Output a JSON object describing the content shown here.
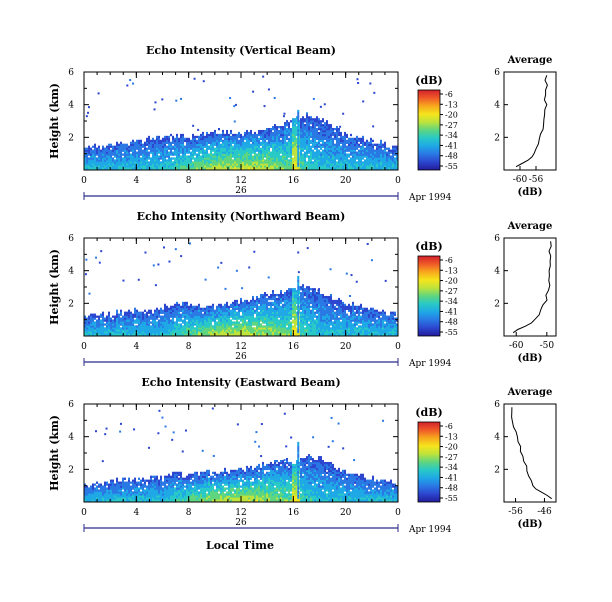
{
  "figure": {
    "xlabel": "Local Time",
    "date_label": "Apr 1994",
    "day_label": "26",
    "colorbar_unit": "(dB)",
    "colorbar_ticks": [
      "-6",
      "-13",
      "-20",
      "-27",
      "-34",
      "-41",
      "-48",
      "-55"
    ],
    "colorbar_colors": [
      "#d2202a",
      "#f05a28",
      "#f7a81e",
      "#f6e41c",
      "#bde33c",
      "#5fd57f",
      "#28c9c7",
      "#1fa8e6",
      "#2a78e4",
      "#2c46cf",
      "#241c9a"
    ],
    "time_ticks": [
      "0",
      "4",
      "8",
      "12",
      "16",
      "20",
      "0"
    ],
    "height_ticks": [
      "6",
      "4",
      "2"
    ],
    "height_label": "Height (km)",
    "avg_title": "Average",
    "avg_xlabel": "(dB)"
  },
  "chart_data": [
    {
      "type": "heatmap",
      "title": "Echo Intensity (Vertical Beam)",
      "xlabel": "Local Time",
      "ylabel": "Height (km)",
      "xlim": [
        0,
        24
      ],
      "ylim": [
        0,
        6
      ],
      "zlim": [
        -55,
        -6
      ],
      "top_km": [
        1.3,
        1.4,
        1.5,
        1.6,
        1.7,
        1.9,
        2.0,
        2.1,
        1.9,
        2.1,
        2.3,
        2.3,
        2.2,
        2.3,
        2.5,
        2.7,
        3.0,
        3.3,
        3.1,
        2.6,
        2.1,
        1.9,
        1.7,
        1.5,
        1.3
      ],
      "profile": {
        "heights_km": [
          0.2,
          0.4,
          0.6,
          0.8,
          1.0,
          1.3,
          1.6,
          1.9,
          2.2,
          2.5,
          2.8,
          3.1,
          3.4,
          3.7,
          4.0,
          4.3,
          4.6,
          4.9,
          5.2,
          5.5,
          5.8
        ],
        "db": [
          -61,
          -59.5,
          -58,
          -57,
          -56.5,
          -56,
          -55.4,
          -55.0,
          -54.7,
          -54.6,
          -54.3,
          -54.4,
          -54.0,
          -53.9,
          -53.6,
          -53.9,
          -53.4,
          -53.5,
          -53.2,
          -53.4,
          -53.1
        ],
        "xlim": [
          -64,
          -51
        ],
        "xticks": [
          "-56",
          "-60"
        ],
        "xtick_vals": [
          -56,
          -60
        ]
      }
    },
    {
      "type": "heatmap",
      "title": "Echo Intensity (Northward Beam)",
      "xlabel": "Local Time",
      "ylabel": "Height (km)",
      "xlim": [
        0,
        24
      ],
      "ylim": [
        0,
        6
      ],
      "zlim": [
        -55,
        -6
      ],
      "top_km": [
        1.1,
        1.2,
        1.3,
        1.4,
        1.5,
        1.6,
        1.7,
        2.0,
        1.9,
        1.7,
        1.8,
        2.0,
        2.1,
        2.3,
        2.5,
        2.6,
        2.8,
        3.1,
        2.7,
        2.2,
        1.9,
        1.8,
        1.6,
        1.4,
        1.2
      ],
      "profile": {
        "heights_km": [
          0.2,
          0.4,
          0.6,
          0.8,
          1.0,
          1.3,
          1.6,
          1.9,
          2.2,
          2.5,
          2.8,
          3.1,
          3.4,
          3.7,
          4.0,
          4.3,
          4.6,
          4.9,
          5.2,
          5.5,
          5.8
        ],
        "db": [
          -61,
          -59.5,
          -57,
          -55,
          -54,
          -52.5,
          -52,
          -51,
          -50.2,
          -50.0,
          -49.6,
          -49.3,
          -49.2,
          -49.0,
          -49.3,
          -48.9,
          -49.2,
          -48.8,
          -49.1,
          -48.8,
          -49.0
        ],
        "xlim": [
          -64,
          -47
        ],
        "xticks": [
          "-50",
          "-60"
        ],
        "xtick_vals": [
          -50,
          -60
        ]
      }
    },
    {
      "type": "heatmap",
      "title": "Echo Intensity (Eastward Beam)",
      "xlabel": "Local Time",
      "ylabel": "Height (km)",
      "xlim": [
        0,
        24
      ],
      "ylim": [
        0,
        6
      ],
      "zlim": [
        -55,
        -6
      ],
      "top_km": [
        1.0,
        1.1,
        1.2,
        1.3,
        1.3,
        1.4,
        1.5,
        1.7,
        1.6,
        1.7,
        1.8,
        1.8,
        1.9,
        2.1,
        2.3,
        2.6,
        2.4,
        2.8,
        2.6,
        2.1,
        1.8,
        1.6,
        1.4,
        1.2,
        1.1
      ],
      "profile": {
        "heights_km": [
          0.2,
          0.4,
          0.6,
          0.8,
          1.0,
          1.3,
          1.6,
          1.9,
          2.2,
          2.5,
          2.8,
          3.1,
          3.4,
          3.7,
          4.0,
          4.3,
          4.6,
          4.9,
          5.2,
          5.5,
          5.8
        ],
        "db": [
          -43.5,
          -45,
          -47,
          -49,
          -50,
          -50.5,
          -51.5,
          -52,
          -52.3,
          -53.2,
          -53.5,
          -54.0,
          -54.5,
          -55.2,
          -55.7,
          -56.0,
          -56.5,
          -56.8,
          -57.2,
          -57.6,
          -57.5
        ],
        "xlim": [
          -60,
          -42
        ],
        "xticks": [
          "-56",
          "-46"
        ],
        "xtick_vals": [
          -56,
          -46
        ]
      }
    }
  ]
}
